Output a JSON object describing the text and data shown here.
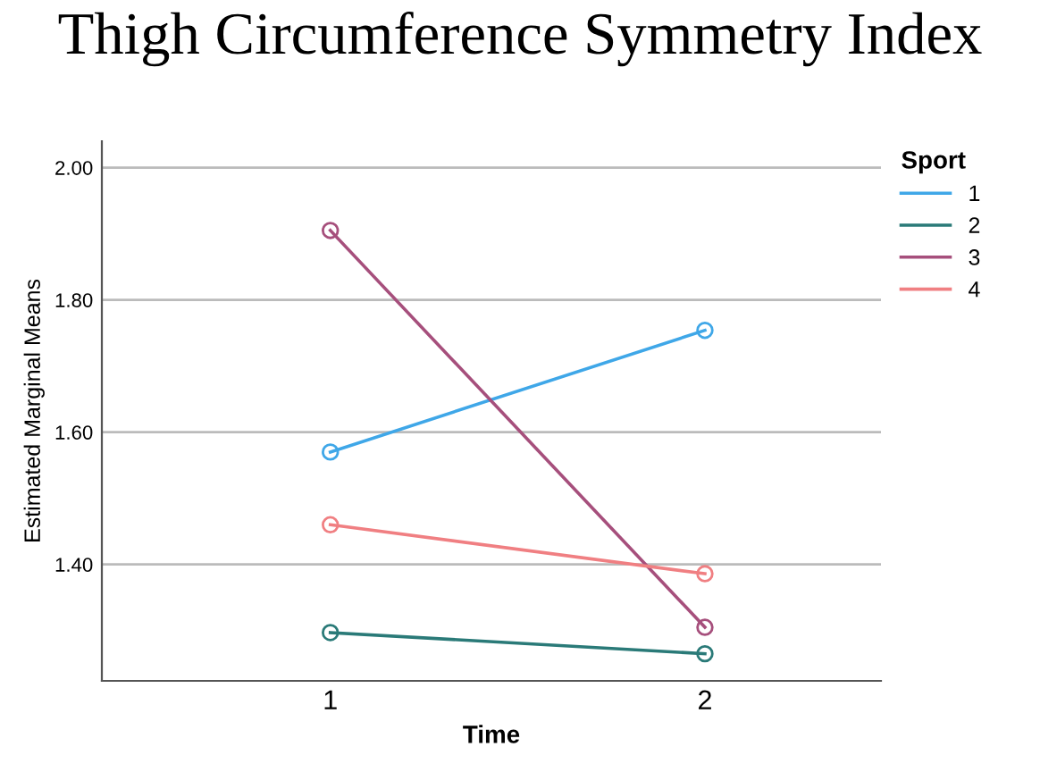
{
  "chart_data": {
    "type": "line",
    "title": "Thigh Circumference Symmetry Index",
    "xlabel": "Time",
    "ylabel": "Estimated Marginal Means",
    "legend_title": "Sport",
    "categories": [
      "1",
      "2"
    ],
    "series": [
      {
        "name": "1",
        "color": "#3fa7e8",
        "values": [
          1.57,
          1.754
        ]
      },
      {
        "name": "2",
        "color": "#2a7a78",
        "values": [
          1.297,
          1.265
        ]
      },
      {
        "name": "3",
        "color": "#a64f7c",
        "values": [
          1.905,
          1.305
        ]
      },
      {
        "name": "4",
        "color": "#f07f82",
        "values": [
          1.46,
          1.386
        ]
      }
    ],
    "ylim": [
      1.224,
      2.04
    ],
    "yticks": [
      {
        "value": 1.4,
        "label": "1.40"
      },
      {
        "value": 1.6,
        "label": "1.60"
      },
      {
        "value": 1.8,
        "label": "1.80"
      },
      {
        "value": 2.0,
        "label": "2.00"
      }
    ],
    "grid": "y",
    "legend": "top right",
    "marker": "circle",
    "line_style": "solid"
  }
}
